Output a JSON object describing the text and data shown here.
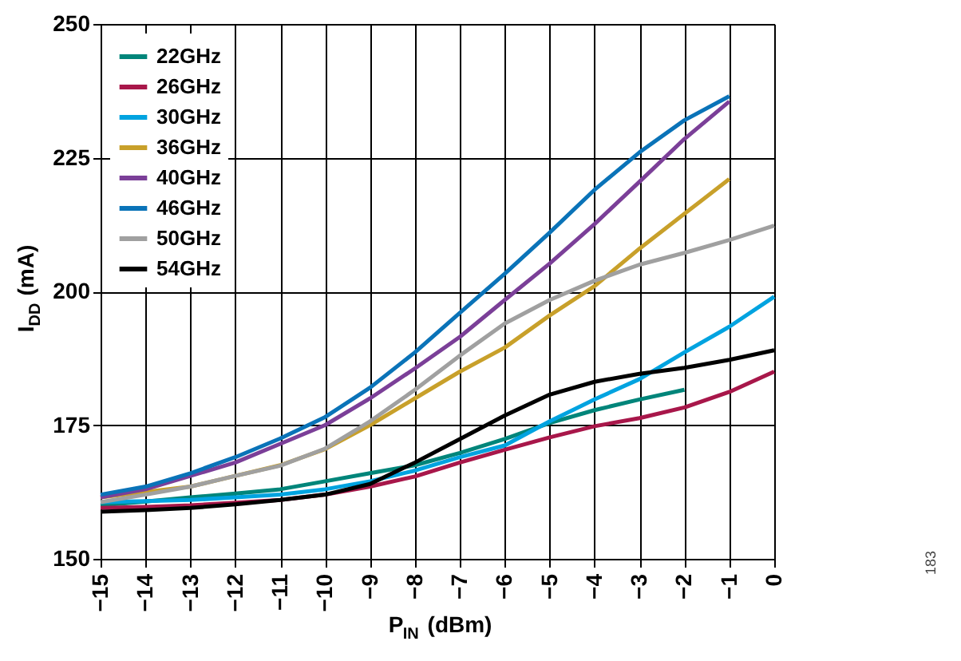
{
  "chart_data": {
    "type": "line",
    "xlabel": "P$_{IN}$ (dBm)",
    "ylabel": "I$_{DD}$ (mA)",
    "x": [
      -15,
      -14,
      -13,
      -12,
      -11,
      -10,
      -9,
      -8,
      -7,
      -6,
      -5,
      -4,
      -3,
      -2,
      -1,
      0
    ],
    "series": [
      {
        "name": "22GHz",
        "color": "#00857a",
        "values": [
          160,
          160.7,
          161.5,
          162.2,
          163,
          164.5,
          166,
          167.5,
          169.8,
          172.4,
          175.4,
          177.8,
          179.8,
          181.6,
          null,
          null
        ]
      },
      {
        "name": "26GHz",
        "color": "#a8174a",
        "values": [
          159.5,
          159.7,
          160,
          160.5,
          161,
          162,
          163.5,
          165.4,
          168,
          170.4,
          172.7,
          174.8,
          176.3,
          178.3,
          181.2,
          185
        ]
      },
      {
        "name": "30GHz",
        "color": "#00a3e0",
        "values": [
          160.6,
          160.8,
          161,
          161.5,
          162,
          163,
          164.5,
          166.5,
          169,
          171.2,
          175.7,
          179.8,
          183.6,
          188.6,
          193.4,
          199
        ]
      },
      {
        "name": "36GHz",
        "color": "#c8a02a",
        "values": [
          161.5,
          162.5,
          163.5,
          165.5,
          167.5,
          170.5,
          175,
          180,
          185,
          189.5,
          195.5,
          201,
          208,
          214.5,
          221,
          null
        ]
      },
      {
        "name": "40GHz",
        "color": "#7b3f98",
        "values": [
          161.5,
          163,
          165.5,
          168,
          171.5,
          175,
          180,
          185.6,
          191.5,
          198.4,
          205.2,
          212.6,
          220.5,
          228.5,
          235.5,
          null
        ]
      },
      {
        "name": "46GHz",
        "color": "#0a73b8",
        "values": [
          162,
          163.5,
          166,
          169,
          172.5,
          176.5,
          182,
          188.6,
          196,
          203.3,
          211,
          219,
          226,
          232,
          236.5,
          null
        ]
      },
      {
        "name": "50GHz",
        "color": "#a0a0a0",
        "values": [
          160.6,
          162,
          163.5,
          165.5,
          167.4,
          170.6,
          175.7,
          181.6,
          188,
          194,
          198.4,
          202,
          205,
          207.2,
          209.6,
          212.3
        ]
      },
      {
        "name": "54GHz",
        "color": "#000000",
        "values": [
          158.8,
          159.1,
          159.5,
          160.2,
          161,
          162,
          164,
          168,
          172.4,
          176.8,
          180.7,
          183.1,
          184.6,
          185.7,
          187.2,
          189
        ]
      }
    ],
    "xlim": [
      -15,
      0
    ],
    "xticks": [
      -15,
      -14,
      -13,
      -12,
      -11,
      -10,
      -9,
      -8,
      -7,
      -6,
      -5,
      -4,
      -3,
      -2,
      -1,
      0
    ],
    "ylim": [
      150,
      250
    ],
    "yticks": [
      150,
      175,
      200,
      225,
      250
    ],
    "grid": true,
    "legend": "top left",
    "line_style": "solid",
    "marker": "none",
    "annotations": [
      "183"
    ]
  }
}
